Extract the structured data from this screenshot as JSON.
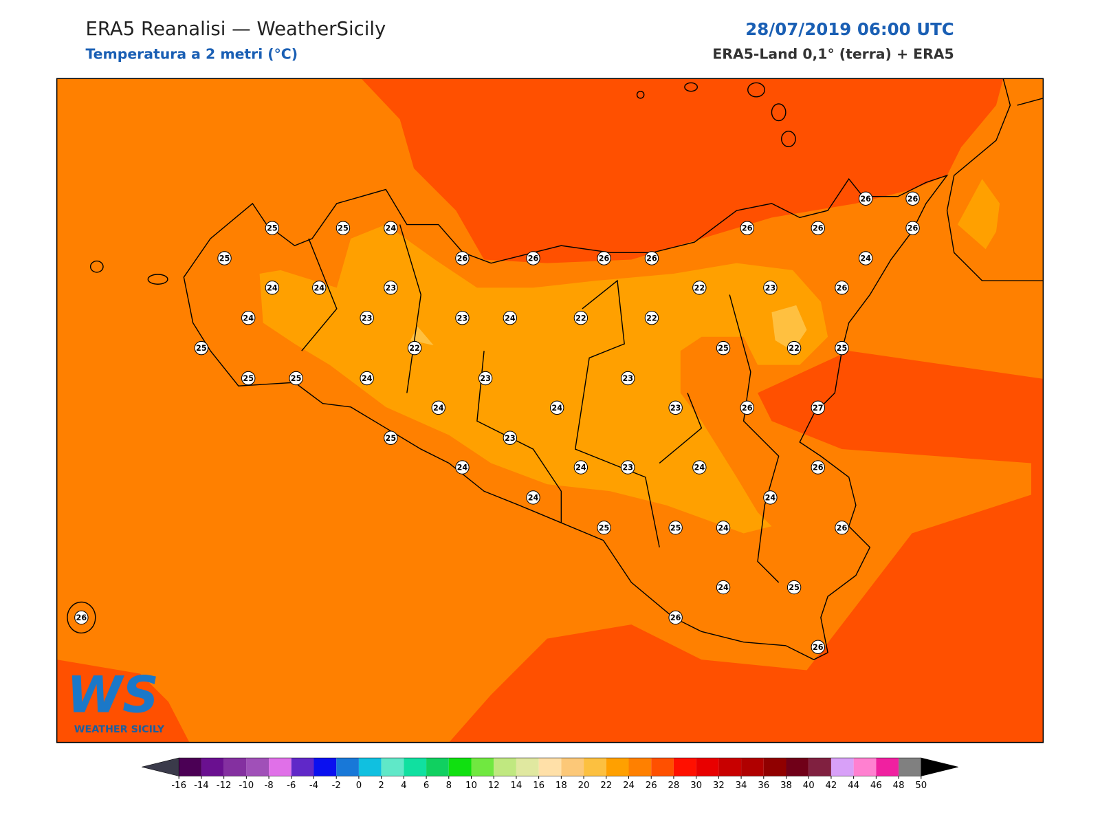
{
  "header": {
    "title": "ERA5 Reanalisi — WeatherSicily",
    "subtitle": "Temperatura a 2 metri (°C)",
    "date": "28/07/2019 06:00 UTC",
    "source": "ERA5-Land 0,1° (terra) + ERA5"
  },
  "map": {
    "station_values": [
      25,
      25,
      24,
      25,
      26,
      26,
      26,
      26,
      24,
      24,
      23,
      24,
      23,
      23,
      24,
      22,
      22,
      25,
      22,
      25,
      25,
      24,
      23,
      23,
      24,
      24,
      23,
      25,
      23,
      24,
      24,
      23,
      24,
      24,
      25,
      25,
      24,
      24,
      26,
      26,
      25,
      26,
      24,
      26,
      26,
      27,
      25,
      22,
      25,
      22,
      23,
      26,
      24,
      26,
      26,
      26,
      26,
      26,
      26
    ]
  },
  "logo": {
    "text": "WS",
    "subtitle": "Weather Sicily"
  },
  "colorbar": {
    "ticks": [
      -16,
      -14,
      -12,
      -10,
      -8,
      -6,
      -4,
      -2,
      0,
      2,
      4,
      6,
      8,
      10,
      12,
      14,
      16,
      18,
      20,
      22,
      24,
      26,
      28,
      30,
      32,
      34,
      36,
      38,
      40,
      42,
      44,
      46,
      48,
      50
    ],
    "colors": [
      "#4b0055",
      "#6a1090",
      "#8430a0",
      "#a050b8",
      "#e070e8",
      "#6028c8",
      "#0a10f0",
      "#1878d8",
      "#10c0e0",
      "#60e8c8",
      "#10e0a0",
      "#10d060",
      "#10e010",
      "#70e840",
      "#c0e880",
      "#e0e8a0",
      "#ffe0a8",
      "#fcc878",
      "#fcc040",
      "#ffa000",
      "#ff8000",
      "#ff5000",
      "#ff1000",
      "#e80000",
      "#c80000",
      "#b00000",
      "#900000",
      "#700018",
      "#802040",
      "#d8a0f8",
      "#ff80d0",
      "#f020a0",
      "#808080",
      "#404040"
    ],
    "under_color": "#3a3a4a",
    "over_color": "#000000"
  }
}
